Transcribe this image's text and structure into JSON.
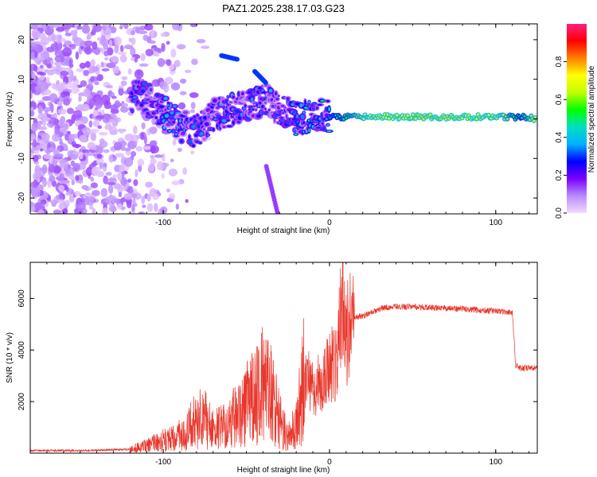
{
  "title": "PAZ1.2025.238.17.03.G23",
  "chart_data": [
    {
      "type": "heatmap",
      "xlabel": "Height of straight line (km)",
      "ylabel": "Frequency (Hz)",
      "xlim": [
        -180,
        125
      ],
      "ylim": [
        -24,
        24
      ],
      "xticks": [
        -100,
        0,
        100
      ],
      "yticks": [
        -20,
        -10,
        0,
        10,
        20
      ],
      "colorbar": {
        "label": "Normalized spectral amplitude",
        "range": [
          0,
          1
        ],
        "ticks": [
          0.0,
          0.2,
          0.4,
          0.6,
          0.8
        ],
        "colors": [
          "#f4d9ff",
          "#b98cff",
          "#7a00ff",
          "#0000ff",
          "#00b0ff",
          "#00e0c0",
          "#00ff00",
          "#c0ff00",
          "#ffff00",
          "#ff8000",
          "#ff0000",
          "#ff2080"
        ]
      },
      "ridge": [
        {
          "x": -120,
          "y": 6,
          "a": 0.3
        },
        {
          "x": -110,
          "y": 5,
          "a": 0.3
        },
        {
          "x": -100,
          "y": 2,
          "a": 0.35
        },
        {
          "x": -90,
          "y": -2,
          "a": 0.35
        },
        {
          "x": -80,
          "y": -3,
          "a": 0.3
        },
        {
          "x": -70,
          "y": 1,
          "a": 0.3
        },
        {
          "x": -60,
          "y": 2,
          "a": 0.35
        },
        {
          "x": -50,
          "y": 3,
          "a": 0.3
        },
        {
          "x": -40,
          "y": 5,
          "a": 0.35
        },
        {
          "x": -30,
          "y": 3,
          "a": 0.3
        },
        {
          "x": -20,
          "y": 0,
          "a": 0.45
        },
        {
          "x": -10,
          "y": 1,
          "a": 0.4
        },
        {
          "x": 0,
          "y": 0.5,
          "a": 0.45
        },
        {
          "x": 10,
          "y": 0.5,
          "a": 0.55
        },
        {
          "x": 25,
          "y": 0.5,
          "a": 0.7
        },
        {
          "x": 50,
          "y": 0.5,
          "a": 0.75
        },
        {
          "x": 75,
          "y": 0.5,
          "a": 0.75
        },
        {
          "x": 100,
          "y": 0.5,
          "a": 0.7
        },
        {
          "x": 115,
          "y": 0.5,
          "a": 0.5
        },
        {
          "x": 125,
          "y": 0,
          "a": 0.7
        }
      ]
    },
    {
      "type": "line",
      "xlabel": "Height of straight line (km)",
      "ylabel": "SNR (10 * v/v)",
      "xlim": [
        -180,
        125
      ],
      "ylim": [
        0,
        7400
      ],
      "xticks": [
        -100,
        0,
        100
      ],
      "yticks": [
        2000,
        4000,
        6000
      ],
      "color": "#e8362b",
      "series": [
        {
          "x": [
            -180,
            -150,
            -120,
            -110,
            -100,
            -90,
            -85,
            -80,
            -75,
            -70,
            -60,
            -50,
            -45,
            -40,
            -35,
            -30,
            -25,
            -20,
            -15,
            -10,
            -5,
            0,
            5,
            8,
            10,
            15,
            20,
            30,
            40,
            60,
            80,
            100,
            110,
            112,
            115,
            125
          ],
          "y": [
            100,
            100,
            150,
            300,
            500,
            700,
            900,
            1400,
            1300,
            900,
            1200,
            1900,
            2200,
            2600,
            2200,
            1300,
            700,
            1100,
            3000,
            2500,
            2800,
            3300,
            3600,
            6800,
            4500,
            5300,
            5300,
            5600,
            5700,
            5650,
            5600,
            5500,
            5450,
            3400,
            3300,
            3300
          ]
        }
      ]
    }
  ]
}
